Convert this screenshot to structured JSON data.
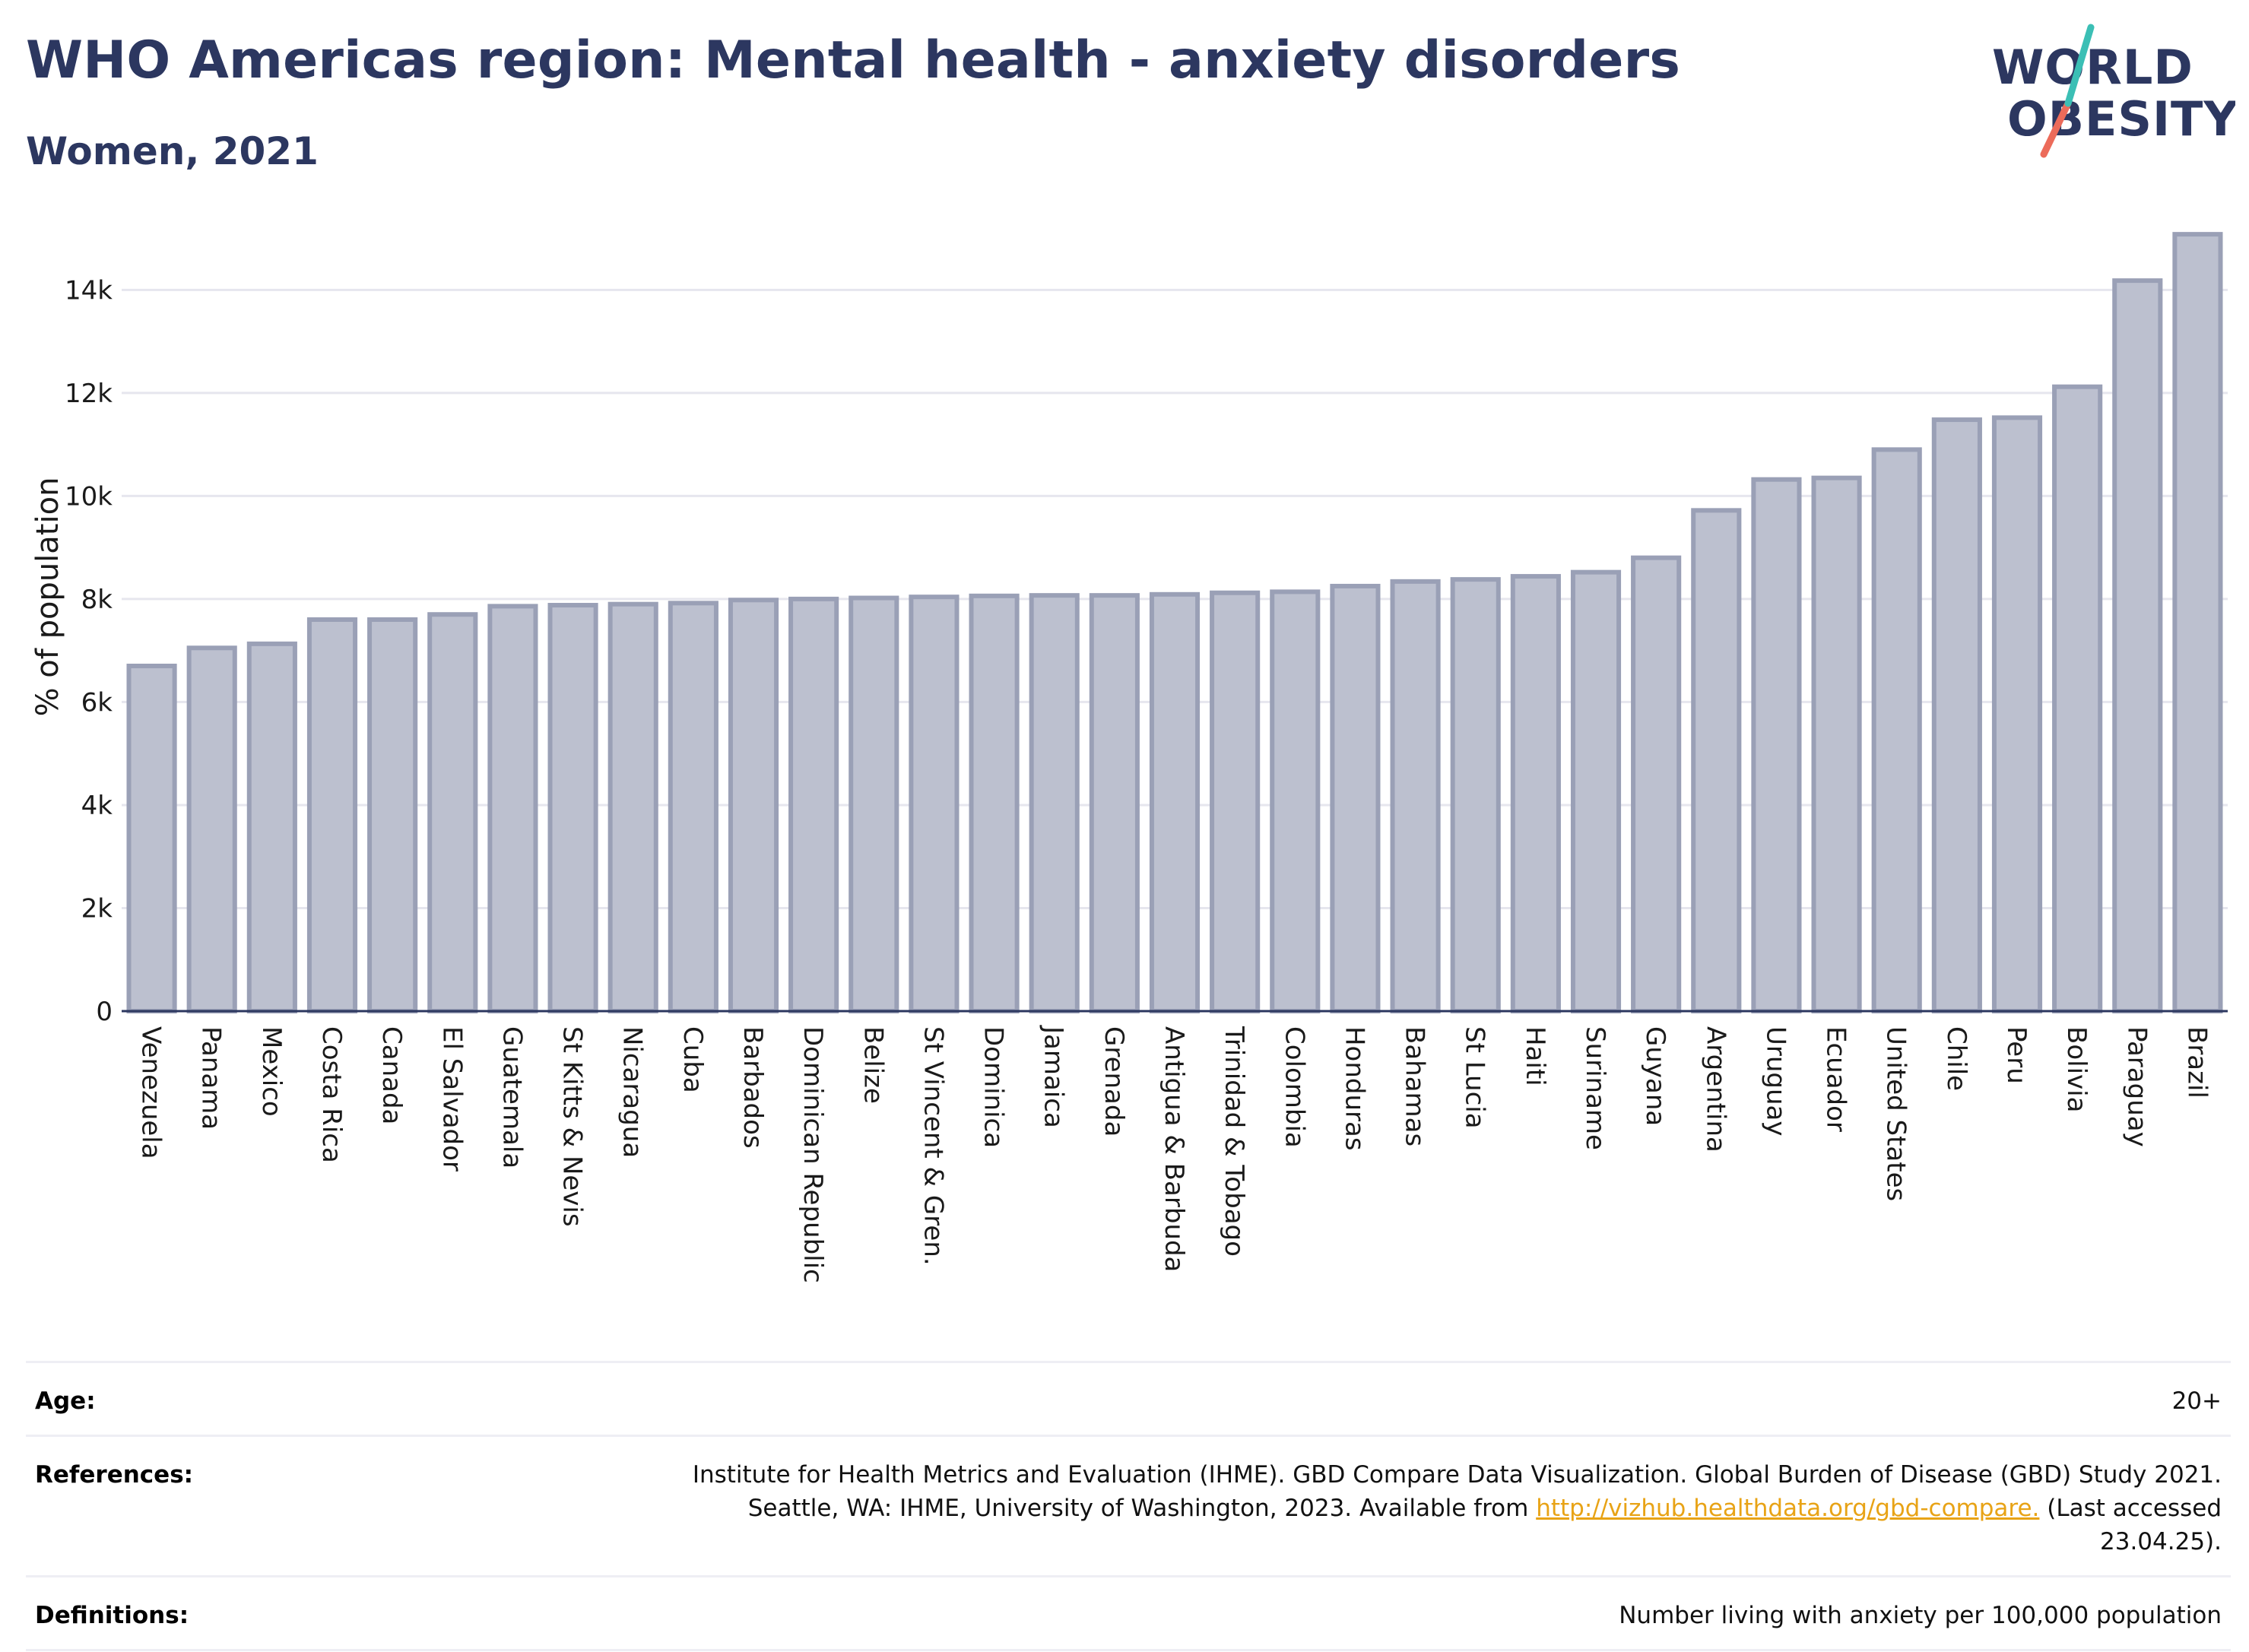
{
  "header": {
    "title": "WHO Americas region: Mental health - anxiety disorders",
    "subtitle": "Women, 2021"
  },
  "logo": {
    "line1": "WORLD",
    "line2": "OBESITY",
    "accent_teal": "#3bbfb5",
    "accent_coral": "#ec6b5a",
    "text_color": "#2c3760"
  },
  "colors": {
    "bar_fill": "#bcc0cf",
    "bar_stroke": "#9aa0b6",
    "title": "#2c3760",
    "link": "#e8a316"
  },
  "chart_data": {
    "type": "bar",
    "ylabel": "% of population",
    "xlabel": "",
    "ylim": [
      0,
      15200
    ],
    "yticks": [
      0,
      2000,
      4000,
      6000,
      8000,
      10000,
      12000,
      14000
    ],
    "ytick_labels": [
      "0",
      "2k",
      "4k",
      "6k",
      "8k",
      "10k",
      "12k",
      "14k"
    ],
    "grid": "horizontal",
    "categories": [
      "Venezuela",
      "Panama",
      "Mexico",
      "Costa Rica",
      "Canada",
      "El Salvador",
      "Guatemala",
      "St Kitts & Nevis",
      "Nicaragua",
      "Cuba",
      "Barbados",
      "Dominican Republic",
      "Belize",
      "St Vincent & Gren.",
      "Dominica",
      "Jamaica",
      "Grenada",
      "Antigua & Barbuda",
      "Trinidad & Tobago",
      "Colombia",
      "Honduras",
      "Bahamas",
      "St Lucia",
      "Haiti",
      "Suriname",
      "Guyana",
      "Argentina",
      "Uruguay",
      "Ecuador",
      "United States",
      "Chile",
      "Peru",
      "Bolivia",
      "Paraguay",
      "Brazil"
    ],
    "values": [
      6700,
      7050,
      7130,
      7600,
      7600,
      7700,
      7860,
      7880,
      7900,
      7920,
      7980,
      8000,
      8020,
      8040,
      8060,
      8070,
      8070,
      8090,
      8120,
      8140,
      8250,
      8340,
      8380,
      8440,
      8520,
      8800,
      9720,
      10320,
      10350,
      10900,
      11480,
      11520,
      12120,
      14180,
      15080
    ]
  },
  "footer": {
    "age": {
      "label": "Age:",
      "value": "20+"
    },
    "references": {
      "label": "References:",
      "line1": "Institute for Health Metrics and Evaluation (IHME). GBD Compare Data Visualization. Global Burden of Disease (GBD) Study 2021.",
      "line2_pre": "Seattle, WA: IHME, University of Washington, 2023. Available from",
      "link": "http://vizhub.healthdata.org/gbd-compare.",
      "line2_post": "(Last accessed",
      "line3": "23.04.25)."
    },
    "definitions": {
      "label": "Definitions:",
      "value": "Number living with anxiety per 100,000 population"
    }
  }
}
